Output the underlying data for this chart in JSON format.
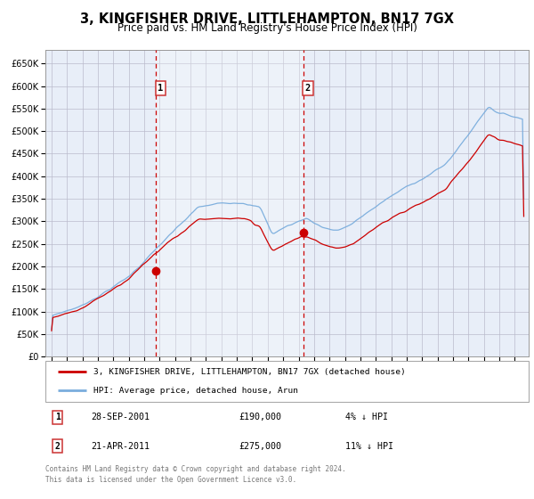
{
  "title": "3, KINGFISHER DRIVE, LITTLEHAMPTON, BN17 7GX",
  "subtitle": "Price paid vs. HM Land Registry's House Price Index (HPI)",
  "legend_red": "3, KINGFISHER DRIVE, LITTLEHAMPTON, BN17 7GX (detached house)",
  "legend_blue": "HPI: Average price, detached house, Arun",
  "annotation1_label": "1",
  "annotation1_date": "28-SEP-2001",
  "annotation1_price": "£190,000",
  "annotation1_hpi": "4% ↓ HPI",
  "annotation1_year": 2001.75,
  "annotation1_value": 190000,
  "annotation2_label": "2",
  "annotation2_date": "21-APR-2011",
  "annotation2_price": "£275,000",
  "annotation2_hpi": "11% ↓ HPI",
  "annotation2_year": 2011.3,
  "annotation2_value": 275000,
  "red_color": "#cc0000",
  "blue_color": "#7aaddd",
  "background_plot": "#e8eef8",
  "grid_color": "#bbbbcc",
  "dashed_line_color": "#cc0000",
  "border_color": "#999999",
  "ylim_min": 0,
  "ylim_max": 680000,
  "yticks": [
    0,
    50000,
    100000,
    150000,
    200000,
    250000,
    300000,
    350000,
    400000,
    450000,
    500000,
    550000,
    600000,
    650000
  ],
  "xlim_min": 1994.6,
  "xlim_max": 2025.9,
  "footer_text": "Contains HM Land Registry data © Crown copyright and database right 2024.\nThis data is licensed under the Open Government Licence v3.0.",
  "footnote_color": "#777777",
  "title_fontsize": 10.5,
  "subtitle_fontsize": 8.5
}
